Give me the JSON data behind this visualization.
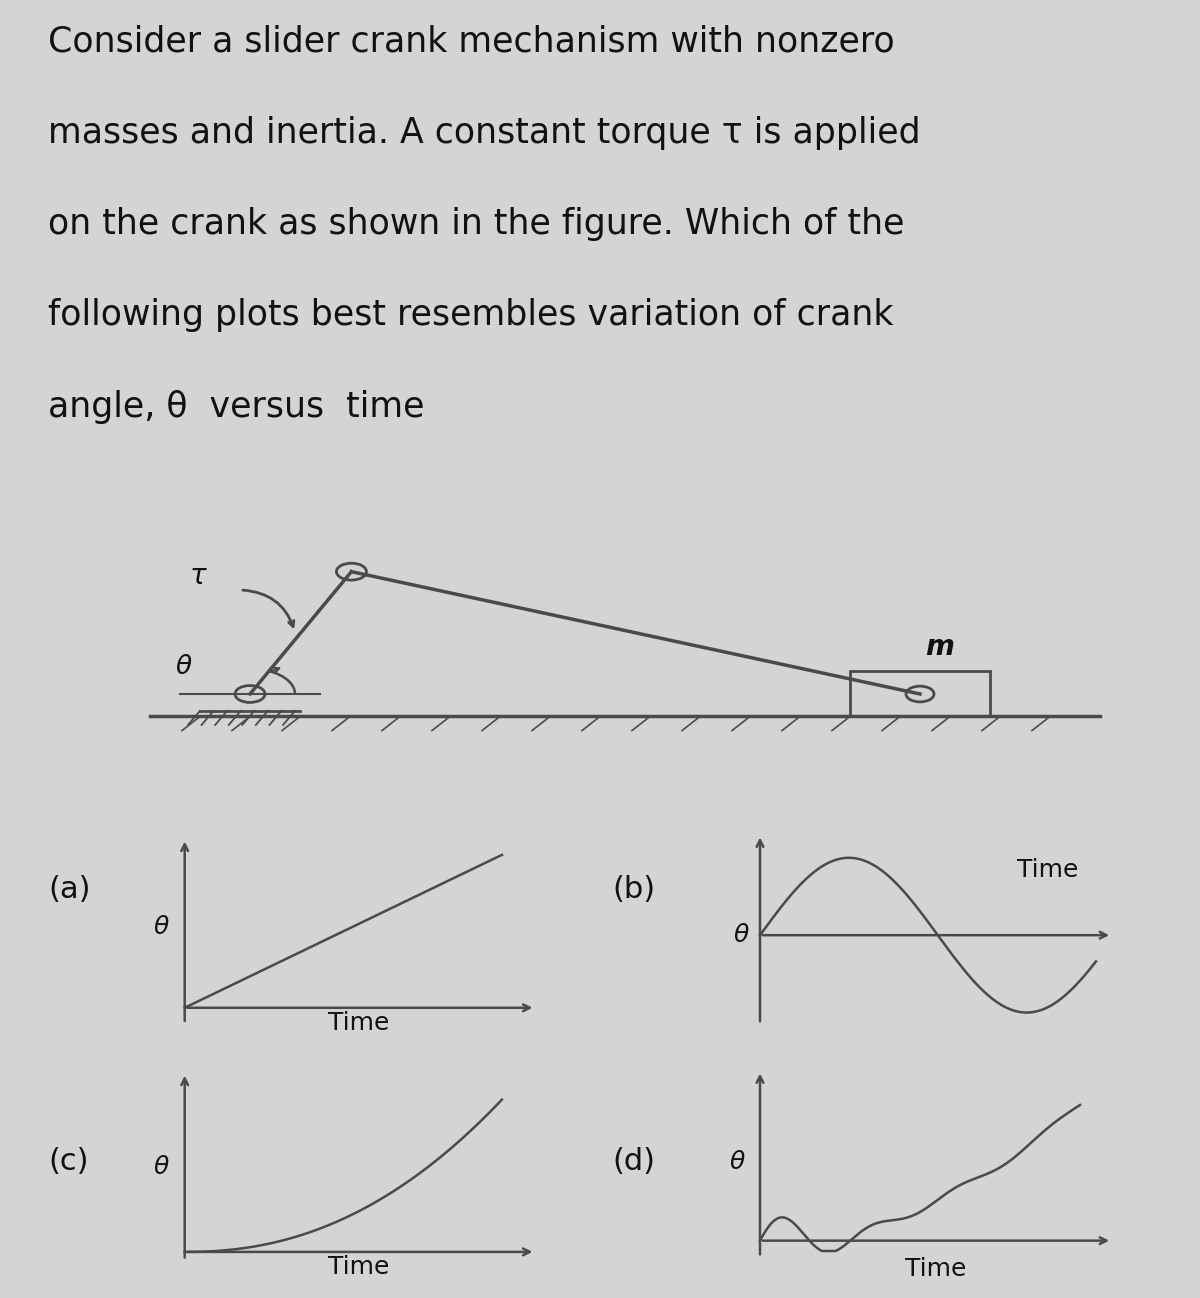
{
  "bg_color": "#d4d4d4",
  "line_color": "#4a4a4a",
  "text_color": "#111111",
  "title_lines": [
    "Consider a slider crank mechanism with nonzero",
    "masses and inertia. A constant torque τ is applied",
    "on the crank as shown in the figure. Which of the",
    "following plots best resembles variation of crank",
    "angle, θ  versus  time"
  ],
  "title_fontsize": 25,
  "sublabel_fontsize": 22,
  "axis_label_fontsize": 18,
  "time_label_fontsize": 18,
  "mech_label_fontsize": 20,
  "subplot_labels": [
    "(a)",
    "(b)",
    "(c)",
    "(d)"
  ],
  "theta_label": "θ",
  "tau_label": "τ",
  "time_label": "Time",
  "m_label": "m"
}
